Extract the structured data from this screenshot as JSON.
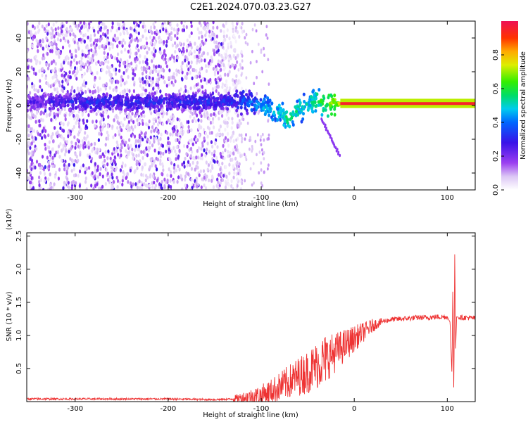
{
  "title": "C2E1.2024.070.03.23.G27",
  "chart_data": [
    {
      "type": "heatmap",
      "xlabel": "Height of straight line (km)",
      "ylabel": "Frequency (Hz)",
      "xlim": [
        -352,
        130
      ],
      "ylim": [
        -50,
        50
      ],
      "xticks": [
        -300,
        -200,
        -100,
        0,
        100
      ],
      "xtick_labels": [
        "-300",
        "-200",
        "-100",
        "0",
        "100"
      ],
      "yticks": [
        -40,
        -20,
        0,
        20,
        40
      ],
      "ytick_labels": [
        "-40",
        "-20",
        "0",
        "20",
        "40"
      ],
      "colorbar": {
        "label": "Normalized spectral amplitude",
        "range": [
          0.0,
          1.0
        ],
        "ticks": [
          0.0,
          0.2,
          0.4,
          0.6,
          0.8
        ],
        "tick_labels": [
          "0.0",
          "0.2",
          "0.4",
          "0.6",
          "0.8"
        ]
      },
      "features": {
        "noise_region_x": [
          -352,
          -130
        ],
        "central_band": [
          {
            "x": -330,
            "freq": 2.0,
            "amplitude": 0.25
          },
          {
            "x": -300,
            "freq": 2.0,
            "amplitude": 0.3
          },
          {
            "x": -250,
            "freq": 2.0,
            "amplitude": 0.3
          },
          {
            "x": -200,
            "freq": 2.0,
            "amplitude": 0.3
          },
          {
            "x": -150,
            "freq": 2.0,
            "amplitude": 0.3
          },
          {
            "x": -120,
            "freq": 3.0,
            "amplitude": 0.35
          },
          {
            "x": -100,
            "freq": 0.0,
            "amplitude": 0.45
          },
          {
            "x": -80,
            "freq": -4.0,
            "amplitude": 0.5
          },
          {
            "x": -70,
            "freq": -8.0,
            "amplitude": 0.55
          },
          {
            "x": -55,
            "freq": 0.0,
            "amplitude": 0.5
          },
          {
            "x": -40,
            "freq": 3.0,
            "amplitude": 0.55
          },
          {
            "x": -20,
            "freq": 1.0,
            "amplitude": 0.7
          },
          {
            "x": 0,
            "freq": 1.0,
            "amplitude": 0.9
          },
          {
            "x": 50,
            "freq": 1.0,
            "amplitude": 0.95
          },
          {
            "x": 100,
            "freq": 1.0,
            "amplitude": 0.95
          },
          {
            "x": 130,
            "freq": 1.0,
            "amplitude": 0.95
          }
        ]
      },
      "grid": false
    },
    {
      "type": "line",
      "xlabel": "Height of straight line (km)",
      "ylabel": "SNR (10 * v/v)",
      "y_multiplier_label": "(x10⁴)",
      "xlim": [
        -352,
        130
      ],
      "ylim": [
        0,
        2.55
      ],
      "xticks": [
        -300,
        -200,
        -100,
        0,
        100
      ],
      "xtick_labels": [
        "-300",
        "-200",
        "-100",
        "0",
        "100"
      ],
      "yticks": [
        0.5,
        1.0,
        1.5,
        2.0,
        2.5
      ],
      "ytick_labels": [
        "0.5",
        "1.0",
        "1.5",
        "2.0",
        "2.5"
      ],
      "series": [
        {
          "color": "#ee3333",
          "x": [
            -352,
            -300,
            -250,
            -200,
            -150,
            -130,
            -115,
            -100,
            -90,
            -80,
            -70,
            -60,
            -50,
            -40,
            -30,
            -20,
            -10,
            0,
            10,
            20,
            25,
            30,
            40,
            50,
            60,
            70,
            80,
            90,
            100,
            103,
            105,
            106,
            107,
            108,
            109,
            110,
            115,
            120,
            130
          ],
          "y": [
            0.04,
            0.04,
            0.04,
            0.04,
            0.03,
            0.04,
            0.07,
            0.1,
            0.15,
            0.22,
            0.3,
            0.38,
            0.45,
            0.55,
            0.65,
            0.75,
            0.85,
            0.95,
            1.05,
            1.15,
            1.18,
            1.21,
            1.24,
            1.25,
            1.26,
            1.27,
            1.27,
            1.28,
            1.28,
            1.2,
            0.4,
            1.8,
            0.1,
            2.3,
            0.8,
            1.28,
            1.27,
            1.27,
            1.26
          ]
        }
      ],
      "grid": false
    }
  ]
}
